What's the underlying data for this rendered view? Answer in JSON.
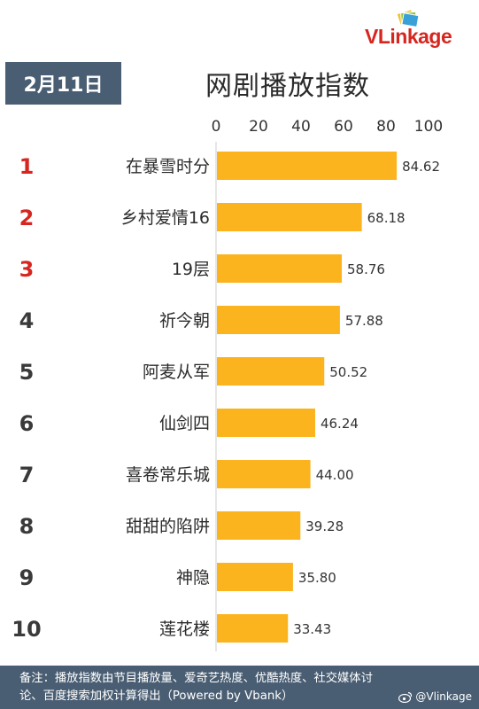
{
  "header": {
    "date": "2月11日",
    "title": "网剧播放指数",
    "brand": "VLinkage"
  },
  "footer": {
    "note_line1": "备注：播放指数由节目播放量、爱奇艺热度、优酷热度、社交媒体讨",
    "note_line2": "论、百度搜索加权计算得出（Powered by Vbank）",
    "watermark": "@Vlinkage"
  },
  "colors": {
    "bar": "#fbb41e",
    "badge": "#4a5e73",
    "top_rank": "#d6261f",
    "rank": "#3a3a3a"
  },
  "chart_data": {
    "type": "bar",
    "orientation": "horizontal",
    "title": "网剧播放指数",
    "xlim": [
      0,
      100
    ],
    "x_ticks": [
      "0",
      "20",
      "40",
      "60",
      "80",
      "100"
    ],
    "ranks": [
      "1",
      "2",
      "3",
      "4",
      "5",
      "6",
      "7",
      "8",
      "9",
      "10"
    ],
    "categories": [
      "在暴雪时分",
      "乡村爱情16",
      "19层",
      "祈今朝",
      "阿麦从军",
      "仙剑四",
      "喜卷常乐城",
      "甜甜的陷阱",
      "神隐",
      "莲花楼"
    ],
    "values": [
      84.62,
      68.18,
      58.76,
      57.88,
      50.52,
      46.24,
      44.0,
      39.28,
      35.8,
      33.43
    ],
    "value_labels": [
      "84.62",
      "68.18",
      "58.76",
      "57.88",
      "50.52",
      "46.24",
      "44.00",
      "39.28",
      "35.80",
      "33.43"
    ]
  }
}
